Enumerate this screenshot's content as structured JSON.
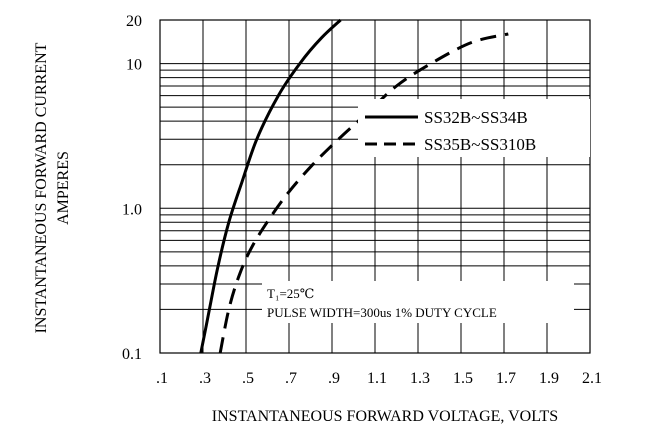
{
  "chart_data": {
    "type": "line",
    "title": "",
    "xlabel": "INSTANTANEOUS FORWARD VOLTAGE, VOLTS",
    "ylabel": [
      "INSTANTANEOUS FORWARD CURRENT",
      "AMPERES"
    ],
    "x_scale": "linear",
    "y_scale": "log",
    "xlim": [
      0.1,
      2.1
    ],
    "ylim": [
      0.1,
      20
    ],
    "x_ticks": [
      0.1,
      0.3,
      0.5,
      0.7,
      0.9,
      1.1,
      1.3,
      1.5,
      1.7,
      1.9,
      2.1
    ],
    "x_tick_labels": [
      ".1",
      ".3",
      ".5",
      ".7",
      ".9",
      "1.1",
      "1.3",
      "1.5",
      "1.7",
      "1.9",
      "2.1"
    ],
    "y_ticks": [
      0.1,
      1.0,
      10,
      20
    ],
    "y_tick_labels": [
      "0.1",
      "1.0",
      "10",
      "20"
    ],
    "grid": true,
    "legend_position": "right",
    "series": [
      {
        "name": "SS32B~SS34B",
        "style": "solid",
        "x": [
          0.29,
          0.33,
          0.37,
          0.42,
          0.48,
          0.55,
          0.65,
          0.75,
          0.85,
          0.94
        ],
        "y": [
          0.1,
          0.2,
          0.4,
          0.8,
          1.5,
          3,
          6,
          10,
          15,
          20
        ]
      },
      {
        "name": "SS35B~SS310B",
        "style": "dashed",
        "x": [
          0.38,
          0.42,
          0.47,
          0.53,
          0.61,
          0.7,
          0.81,
          0.93,
          1.06,
          1.2,
          1.36,
          1.55,
          1.72
        ],
        "y": [
          0.1,
          0.2,
          0.35,
          0.55,
          0.85,
          1.3,
          2,
          3,
          4.5,
          7,
          10,
          14,
          16
        ]
      }
    ],
    "annotations": {
      "temperature": "T₁=25℃",
      "pulse": "PULSE WIDTH=300us 1% DUTY CYCLE"
    }
  }
}
